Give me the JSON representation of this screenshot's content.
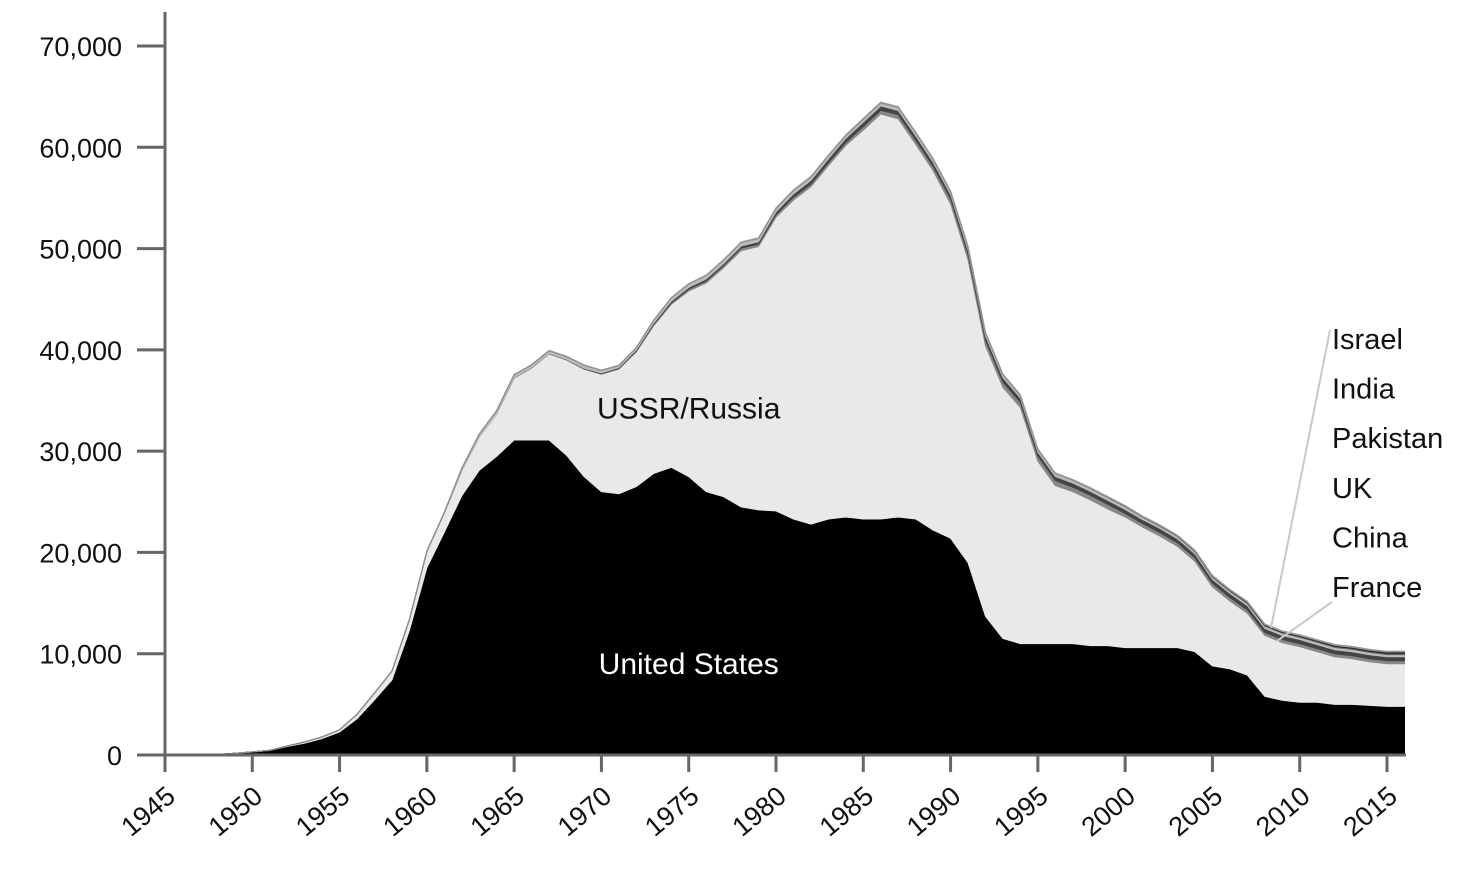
{
  "chart_data": {
    "type": "area",
    "stacked": true,
    "title": "",
    "xlabel": "",
    "ylabel": "",
    "xlim": [
      1945,
      2016
    ],
    "ylim": [
      0,
      70000
    ],
    "x_ticks": [
      1945,
      1950,
      1955,
      1960,
      1965,
      1970,
      1975,
      1980,
      1985,
      1990,
      1995,
      2000,
      2005,
      2010,
      2015
    ],
    "x_tick_labels": [
      "1945",
      "1950",
      "1955",
      "1960",
      "1965",
      "1970",
      "1975",
      "1980",
      "1985",
      "1990",
      "1995",
      "2000",
      "2005",
      "2010",
      "2015"
    ],
    "y_ticks": [
      0,
      10000,
      20000,
      30000,
      40000,
      50000,
      60000,
      70000
    ],
    "y_tick_labels": [
      "0",
      "10,000",
      "20,000",
      "30,000",
      "40,000",
      "50,000",
      "60,000",
      "70,000"
    ],
    "x": [
      1945,
      1946,
      1947,
      1948,
      1949,
      1950,
      1951,
      1952,
      1953,
      1954,
      1955,
      1956,
      1957,
      1958,
      1959,
      1960,
      1961,
      1962,
      1963,
      1964,
      1965,
      1966,
      1967,
      1968,
      1969,
      1970,
      1971,
      1972,
      1973,
      1974,
      1975,
      1976,
      1977,
      1978,
      1979,
      1980,
      1981,
      1982,
      1983,
      1984,
      1985,
      1986,
      1987,
      1988,
      1989,
      1990,
      1991,
      1992,
      1993,
      1994,
      1995,
      1996,
      1997,
      1998,
      1999,
      2000,
      2001,
      2002,
      2003,
      2004,
      2005,
      2006,
      2007,
      2008,
      2009,
      2010,
      2011,
      2012,
      2013,
      2014,
      2015,
      2016
    ],
    "series": [
      {
        "name": "United States",
        "color": "#000000",
        "label_color": "#ffffff",
        "values": [
          2,
          9,
          13,
          50,
          170,
          300,
          440,
          840,
          1170,
          1630,
          2280,
          3580,
          5450,
          7400,
          12300,
          18500,
          22000,
          25600,
          28100,
          29500,
          31100,
          31100,
          31100,
          29600,
          27500,
          26000,
          25800,
          26500,
          27800,
          28400,
          27500,
          26000,
          25500,
          24500,
          24200,
          24100,
          23300,
          22800,
          23300,
          23500,
          23300,
          23300,
          23500,
          23300,
          22200,
          21400,
          19000,
          13700,
          11500,
          11000,
          11000,
          11000,
          11000,
          10800,
          10800,
          10600,
          10600,
          10600,
          10600,
          10200,
          8800,
          8500,
          7900,
          5800,
          5400,
          5200,
          5200,
          5000,
          5000,
          4900,
          4800,
          4800
        ]
      },
      {
        "name": "USSR/Russia",
        "color": "#e9e9e9",
        "label_color": "#111111",
        "values": [
          0,
          0,
          0,
          0,
          1,
          5,
          25,
          50,
          120,
          150,
          200,
          430,
          650,
          860,
          1060,
          1600,
          1900,
          2500,
          3300,
          4200,
          6100,
          7100,
          8500,
          9400,
          10600,
          11600,
          12300,
          13300,
          14600,
          16100,
          18300,
          20600,
          22600,
          25300,
          26000,
          29000,
          31500,
          33300,
          34900,
          36700,
          38400,
          40000,
          39300,
          37000,
          35500,
          33000,
          29900,
          26700,
          24800,
          23300,
          18000,
          15600,
          15000,
          14400,
          13500,
          12900,
          11900,
          11000,
          10000,
          8900,
          7800,
          6700,
          6100,
          6000,
          5700,
          5500,
          5000,
          4700,
          4500,
          4300,
          4200,
          4200
        ]
      },
      {
        "name": "France",
        "color": "#888888",
        "values": [
          0,
          0,
          0,
          0,
          0,
          0,
          0,
          0,
          0,
          0,
          0,
          0,
          0,
          0,
          0,
          0,
          0,
          0,
          0,
          4,
          32,
          36,
          36,
          36,
          36,
          36,
          45,
          70,
          116,
          145,
          188,
          212,
          228,
          235,
          235,
          250,
          274,
          274,
          279,
          280,
          360,
          355,
          420,
          410,
          410,
          505,
          540,
          540,
          525,
          510,
          500,
          500,
          450,
          450,
          450,
          350,
          350,
          350,
          350,
          350,
          350,
          350,
          350,
          300,
          300,
          300,
          300,
          300,
          300,
          300,
          300,
          300
        ]
      },
      {
        "name": "China",
        "color": "#444444",
        "values": [
          0,
          0,
          0,
          0,
          0,
          0,
          0,
          0,
          0,
          0,
          0,
          0,
          0,
          0,
          0,
          0,
          0,
          0,
          0,
          1,
          5,
          20,
          25,
          35,
          50,
          75,
          100,
          130,
          150,
          170,
          185,
          190,
          200,
          220,
          235,
          280,
          330,
          360,
          380,
          415,
          425,
          425,
          415,
          430,
          430,
          430,
          435,
          435,
          435,
          435,
          400,
          400,
          400,
          400,
          400,
          400,
          400,
          400,
          400,
          400,
          400,
          400,
          400,
          400,
          400,
          400,
          400,
          400,
          400,
          400,
          400,
          400
        ]
      },
      {
        "name": "UK",
        "color": "#bbbbbb",
        "values": [
          0,
          0,
          0,
          0,
          0,
          0,
          0,
          0,
          1,
          5,
          10,
          15,
          20,
          22,
          25,
          30,
          50,
          205,
          280,
          310,
          310,
          270,
          270,
          280,
          308,
          280,
          220,
          220,
          275,
          325,
          350,
          350,
          350,
          350,
          350,
          350,
          350,
          335,
          320,
          270,
          300,
          300,
          300,
          300,
          300,
          300,
          300,
          300,
          300,
          250,
          250,
          281,
          281,
          281,
          281,
          281,
          225,
          225,
          225,
          225,
          225,
          225,
          225,
          225,
          225,
          225,
          225,
          225,
          225,
          225,
          215,
          215
        ]
      },
      {
        "name": "Pakistan",
        "color": "#666666",
        "values": [
          0,
          0,
          0,
          0,
          0,
          0,
          0,
          0,
          0,
          0,
          0,
          0,
          0,
          0,
          0,
          0,
          0,
          0,
          0,
          0,
          0,
          0,
          0,
          0,
          0,
          0,
          0,
          0,
          0,
          0,
          0,
          0,
          0,
          0,
          0,
          0,
          0,
          0,
          0,
          0,
          0,
          0,
          0,
          0,
          0,
          0,
          0,
          0,
          0,
          0,
          0,
          0,
          0,
          5,
          10,
          15,
          20,
          25,
          30,
          35,
          45,
          50,
          60,
          70,
          80,
          90,
          100,
          110,
          120,
          120,
          130,
          140
        ]
      },
      {
        "name": "India",
        "color": "#222222",
        "values": [
          0,
          0,
          0,
          0,
          0,
          0,
          0,
          0,
          0,
          0,
          0,
          0,
          0,
          0,
          0,
          0,
          0,
          0,
          0,
          0,
          0,
          0,
          0,
          0,
          0,
          0,
          0,
          0,
          0,
          0,
          0,
          0,
          0,
          0,
          0,
          0,
          0,
          0,
          0,
          0,
          0,
          0,
          0,
          0,
          0,
          0,
          0,
          0,
          0,
          0,
          0,
          0,
          0,
          5,
          10,
          15,
          20,
          25,
          30,
          35,
          40,
          50,
          60,
          70,
          70,
          80,
          90,
          100,
          100,
          110,
          120,
          120
        ]
      },
      {
        "name": "Israel",
        "color": "#999999",
        "values": [
          0,
          0,
          0,
          0,
          0,
          0,
          0,
          0,
          0,
          0,
          0,
          0,
          0,
          0,
          0,
          0,
          0,
          0,
          0,
          0,
          0,
          0,
          2,
          4,
          6,
          8,
          10,
          15,
          20,
          25,
          30,
          35,
          40,
          45,
          50,
          55,
          60,
          65,
          70,
          75,
          80,
          80,
          80,
          80,
          80,
          80,
          80,
          80,
          80,
          80,
          80,
          80,
          80,
          80,
          80,
          80,
          80,
          80,
          80,
          80,
          80,
          80,
          80,
          80,
          80,
          80,
          80,
          80,
          80,
          80,
          80,
          80
        ]
      }
    ],
    "area_labels": {
      "United States": "United States",
      "USSR/Russia": "USSR/Russia"
    },
    "legend": [
      "Israel",
      "India",
      "Pakistan",
      "UK",
      "China",
      "France"
    ],
    "colors": {
      "axis": "#666666",
      "text": "#111111",
      "leader": "#c8c8c8"
    }
  }
}
